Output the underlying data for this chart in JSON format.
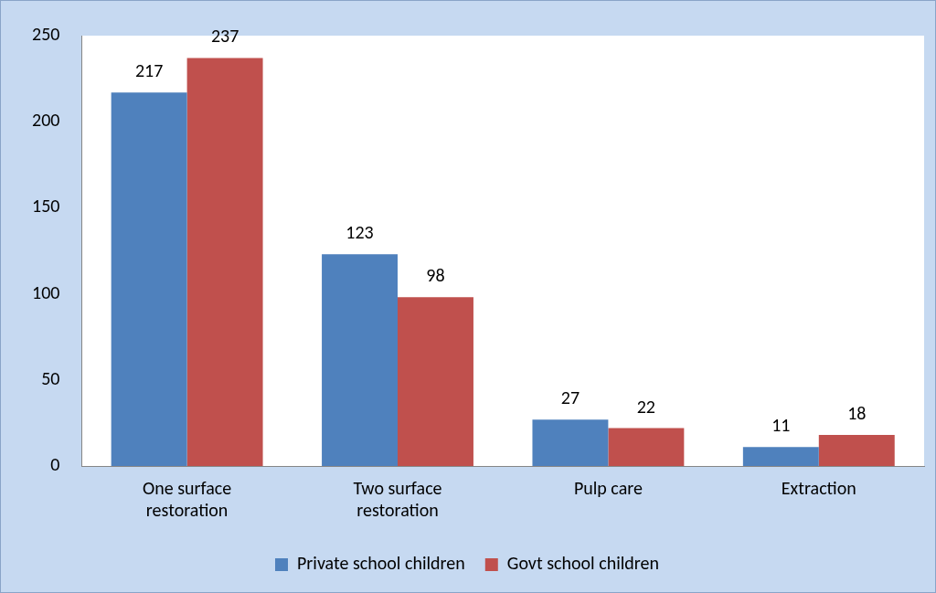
{
  "chart_data": {
    "type": "bar",
    "categories": [
      "One surface restoration",
      "Two surface restoration",
      "Pulp care",
      "Extraction"
    ],
    "series": [
      {
        "name": "Private school children",
        "color": "#4f81bd",
        "values": [
          217,
          123,
          27,
          11
        ]
      },
      {
        "name": "Govt school children",
        "color": "#c0504d",
        "values": [
          237,
          98,
          22,
          18
        ]
      }
    ],
    "ylim": [
      0,
      250
    ],
    "yticks": [
      0,
      50,
      100,
      150,
      200,
      250
    ],
    "grid": false,
    "legend": "bottom",
    "data_labels": true
  }
}
